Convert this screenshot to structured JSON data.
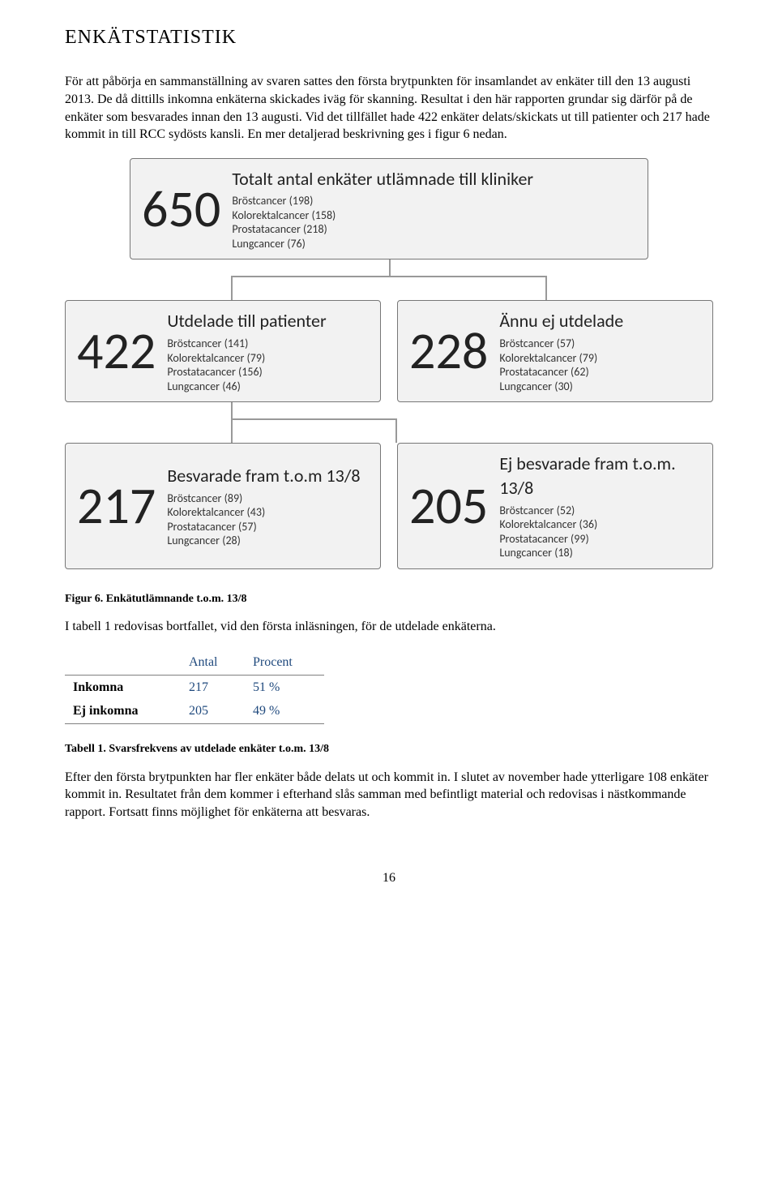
{
  "heading": "ENKÄTSTATISTIK",
  "paragraph1": "För att påbörja en sammanställning av svaren sattes den första brytpunkten för insamlandet av enkäter till den 13 augusti 2013. De då dittills inkomna enkäterna skickades iväg för skanning. Resultat i den här rapporten grundar sig därför på de enkäter som besvarades innan den 13 augusti. Vid det tillfället hade 422 enkäter delats/skickats ut till patienter och 217 hade kommit in till RCC sydösts kansli. En mer detaljerad beskrivning ges i figur 6 nedan.",
  "diagram": {
    "background_color": "#f2f2f2",
    "border_color": "#777777",
    "connector_color": "#999999",
    "root": {
      "title": "Totalt antal enkäter utlämnade till kliniker",
      "value": "650",
      "lines": [
        "Bröstcancer (198)",
        "Kolorektalcancer (158)",
        "Prostatacancer (218)",
        "Lungcancer (76)"
      ]
    },
    "level2": [
      {
        "title": "Utdelade till patienter",
        "value": "422",
        "lines": [
          "Bröstcancer (141)",
          "Kolorektalcancer (79)",
          "Prostatacancer (156)",
          "Lungcancer (46)"
        ]
      },
      {
        "title": "Ännu ej utdelade",
        "value": "228",
        "lines": [
          "Bröstcancer (57)",
          "Kolorektalcancer (79)",
          "Prostatacancer (62)",
          "Lungcancer (30)"
        ]
      }
    ],
    "level3": [
      {
        "title": "Besvarade fram t.o.m 13/8",
        "value": "217",
        "lines": [
          "Bröstcancer (89)",
          "Kolorektalcancer (43)",
          "Prostatacancer (57)",
          "Lungcancer (28)"
        ]
      },
      {
        "title": "Ej besvarade fram t.o.m. 13/8",
        "value": "205",
        "lines": [
          "Bröstcancer (52)",
          "Kolorektalcancer (36)",
          "Prostatacancer (99)",
          "Lungcancer (18)"
        ]
      }
    ]
  },
  "figcaption": "Figur 6. Enkätutlämnande t.o.m. 13/8",
  "paragraph2": "I tabell 1 redovisas bortfallet, vid den första inläsningen, för de utdelade enkäterna.",
  "table": {
    "header_color": "#1f497d",
    "columns": [
      "",
      "Antal",
      "Procent"
    ],
    "rows": [
      [
        "Inkomna",
        "217",
        "51 %"
      ],
      [
        "Ej inkomna",
        "205",
        "49 %"
      ]
    ]
  },
  "tablecaption": "Tabell 1. Svarsfrekvens av utdelade enkäter t.o.m. 13/8",
  "paragraph3": "Efter den första brytpunkten har fler enkäter både delats ut och kommit in. I slutet av november hade ytterligare 108 enkäter kommit in. Resultatet från dem kommer i efterhand slås samman med befintligt material och redovisas i nästkommande rapport. Fortsatt finns möjlighet för enkäterna att besvaras.",
  "pagenum": "16"
}
